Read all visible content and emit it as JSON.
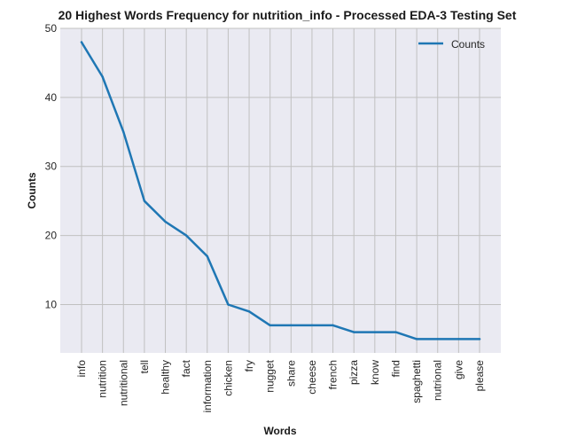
{
  "chart_data": {
    "type": "line",
    "title": "20 Highest Words Frequency for nutrition_info - Processed EDA-3 Testing Set",
    "xlabel": "Words",
    "ylabel": "Counts",
    "categories": [
      "info",
      "nutrition",
      "nutritional",
      "tell",
      "healthy",
      "fact",
      "information",
      "chicken",
      "fry",
      "nugget",
      "share",
      "cheese",
      "french",
      "pizza",
      "know",
      "find",
      "spaghetti",
      "nutrional",
      "give",
      "please"
    ],
    "series": [
      {
        "name": "Counts",
        "values": [
          48,
          43,
          35,
          25,
          22,
          20,
          17,
          10,
          9,
          7,
          7,
          7,
          7,
          6,
          6,
          6,
          5,
          5,
          5,
          5
        ],
        "color": "#1f77b4"
      }
    ],
    "yticks": [
      10,
      20,
      30,
      40,
      50
    ],
    "ylim": [
      3,
      50
    ],
    "grid": true,
    "legend_position": "top-right",
    "background_color": "#eaeaf2",
    "grid_color": "#c0c0c0"
  }
}
